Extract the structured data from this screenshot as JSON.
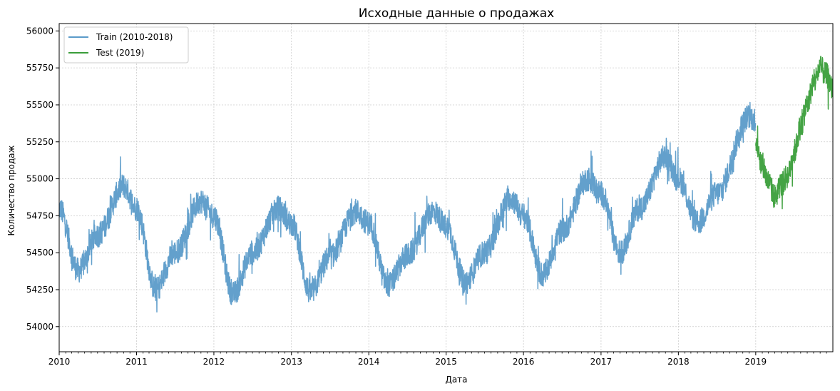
{
  "chart_data": {
    "type": "line",
    "title": "Исходные данные о продажах",
    "xlabel": "Дата",
    "ylabel": "Количество продаж",
    "x_range": [
      "2010-01-01",
      "2019-12-31"
    ],
    "ylim": [
      53830,
      56050
    ],
    "x_ticks": [
      "2010",
      "2011",
      "2012",
      "2013",
      "2014",
      "2015",
      "2016",
      "2017",
      "2018",
      "2019"
    ],
    "y_ticks": [
      54000,
      54250,
      54500,
      54750,
      55000,
      55250,
      55500,
      55750,
      56000
    ],
    "grid": true,
    "legend_position": "top-left",
    "series": [
      {
        "name": "Train (2010-2018)",
        "color": "#5b9bc9",
        "x": [
          "2010-01-01",
          "2010-04-01",
          "2010-07-01",
          "2010-11-01",
          "2011-01-01",
          "2011-04-01",
          "2011-07-01",
          "2011-11-01",
          "2012-01-01",
          "2012-04-01",
          "2012-07-01",
          "2012-11-01",
          "2013-01-01",
          "2013-04-01",
          "2013-07-01",
          "2013-11-01",
          "2014-01-01",
          "2014-04-01",
          "2014-07-01",
          "2014-11-01",
          "2015-01-01",
          "2015-04-01",
          "2015-07-01",
          "2015-11-01",
          "2016-01-01",
          "2016-04-01",
          "2016-07-01",
          "2016-11-01",
          "2017-01-01",
          "2017-04-01",
          "2017-07-01",
          "2017-11-01",
          "2018-01-01",
          "2018-04-01",
          "2018-07-01",
          "2018-12-01",
          "2018-12-31"
        ],
        "values": [
          54800,
          54380,
          54620,
          54950,
          54800,
          54250,
          54500,
          54850,
          54750,
          54220,
          54500,
          54800,
          54700,
          54230,
          54470,
          54780,
          54700,
          54280,
          54480,
          54780,
          54680,
          54300,
          54500,
          54870,
          54750,
          54350,
          54650,
          55000,
          54900,
          54500,
          54800,
          55150,
          55000,
          54700,
          54900,
          55420,
          55400
        ]
      },
      {
        "name": "Test (2019)",
        "color": "#3a9e3a",
        "x": [
          "2019-01-01",
          "2019-02-01",
          "2019-03-01",
          "2019-04-01",
          "2019-05-01",
          "2019-06-01",
          "2019-07-01",
          "2019-08-01",
          "2019-09-01",
          "2019-10-01",
          "2019-11-01",
          "2019-12-01",
          "2019-12-31"
        ],
        "values": [
          55250,
          55100,
          54980,
          54880,
          54960,
          55020,
          55180,
          55350,
          55500,
          55650,
          55750,
          55700,
          55600
        ]
      }
    ]
  }
}
